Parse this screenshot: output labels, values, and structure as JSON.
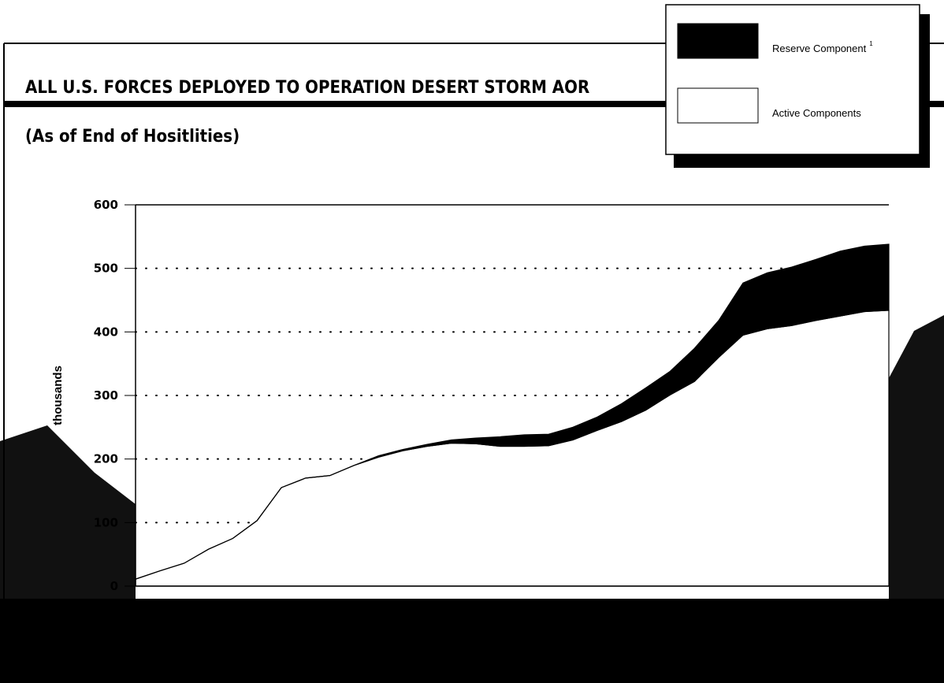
{
  "chart_data": {
    "type": "stacked_area",
    "title": "ALL U.S. FORCES DEPLOYED TO OPERATION DESERT STORM AOR",
    "subtitle": "(As of End of Hositlities)",
    "ylabel": "thousands",
    "categories": [
      null,
      null,
      null,
      null,
      null,
      null,
      null,
      null,
      null,
      null,
      null,
      null,
      null,
      null,
      null,
      null,
      null,
      null,
      null,
      null,
      null,
      null,
      null,
      null,
      null,
      null,
      null,
      null,
      null,
      null,
      null,
      null
    ],
    "series": [
      {
        "name": "Active Components",
        "color": "#ffffff",
        "values": [
          11,
          24,
          36,
          58,
          75,
          103,
          155,
          170,
          174,
          190,
          203,
          213,
          220,
          225,
          224,
          220,
          220,
          221,
          230,
          245,
          259,
          277,
          301,
          322,
          360,
          395,
          405,
          410,
          418,
          425,
          432,
          434
        ]
      },
      {
        "name": "Reserve Component",
        "name_note": "1",
        "color": "#000000",
        "values": [
          0,
          0,
          0,
          0,
          0,
          0,
          0,
          0,
          0,
          0,
          2,
          2,
          3,
          5,
          9,
          15,
          18,
          18,
          20,
          21,
          28,
          35,
          37,
          52,
          58,
          82,
          88,
          92,
          96,
          102,
          103,
          104
        ]
      }
    ],
    "ylim": [
      0,
      600
    ],
    "yticks": [
      0,
      100,
      200,
      300,
      400,
      500,
      600
    ],
    "grid": true
  }
}
